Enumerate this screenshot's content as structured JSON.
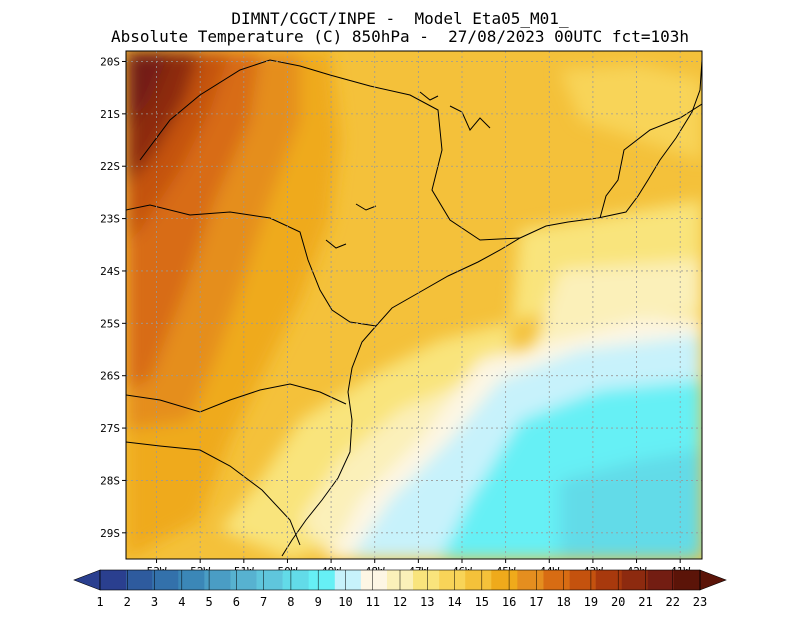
{
  "header": {
    "line1": "DIMNT/CGCT/INPE -  Model Eta05_M01_",
    "line2": "Absolute Temperature (C) 850hPa -  27/08/2023 00UTC fct=103h"
  },
  "map": {
    "lon_range": [
      -53.7,
      -40.5
    ],
    "lat_range": [
      -29.5,
      -19.8
    ],
    "lat_ticks": [
      {
        "value": -20,
        "label": "20S"
      },
      {
        "value": -21,
        "label": "21S"
      },
      {
        "value": -22,
        "label": "22S"
      },
      {
        "value": -23,
        "label": "23S"
      },
      {
        "value": -24,
        "label": "24S"
      },
      {
        "value": -25,
        "label": "25S"
      },
      {
        "value": -26,
        "label": "26S"
      },
      {
        "value": -27,
        "label": "27S"
      },
      {
        "value": -28,
        "label": "28S"
      },
      {
        "value": -29,
        "label": "29S"
      }
    ],
    "lon_ticks": [
      {
        "value": -53,
        "label": "53W"
      },
      {
        "value": -52,
        "label": "52W"
      },
      {
        "value": -51,
        "label": "51W"
      },
      {
        "value": -50,
        "label": "50W"
      },
      {
        "value": -49,
        "label": "49W"
      },
      {
        "value": -48,
        "label": "48W"
      },
      {
        "value": -47,
        "label": "47W"
      },
      {
        "value": -46,
        "label": "46W"
      },
      {
        "value": -45,
        "label": "45W"
      },
      {
        "value": -44,
        "label": "44W"
      },
      {
        "value": -43,
        "label": "43W"
      },
      {
        "value": -42,
        "label": "42W"
      },
      {
        "value": -41,
        "label": "41W"
      }
    ]
  },
  "colorbar": {
    "labels": [
      "1",
      "2",
      "3",
      "4",
      "5",
      "6",
      "7",
      "8",
      "9",
      "10",
      "11",
      "12",
      "13",
      "14",
      "15",
      "16",
      "17",
      "18",
      "19",
      "20",
      "21",
      "22",
      "23"
    ],
    "colors": [
      "#2a3f8f",
      "#2e5b9e",
      "#3371ab",
      "#3b87b7",
      "#4a9dc4",
      "#57b2d0",
      "#5fc6dc",
      "#62dbe8",
      "#66f0f5",
      "#c7f2fb",
      "#fdf6e4",
      "#fbf0b9",
      "#f9e47c",
      "#f8d458",
      "#f4c13a",
      "#efaa1b",
      "#e58e1f",
      "#d86c13",
      "#c4520e",
      "#a8390d",
      "#8d2a0f",
      "#731d12",
      "#5b1408"
    ]
  }
}
